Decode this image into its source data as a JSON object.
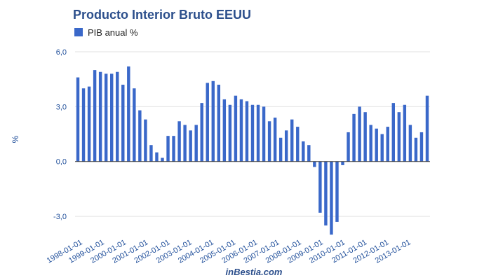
{
  "chart_data": {
    "type": "bar",
    "title": "Producto Interior Bruto EEUU",
    "ylabel": "%",
    "xlabel": "",
    "source": "inBestia.com",
    "ylim": [
      -3.8,
      6.0
    ],
    "yticks": [
      "6,0",
      "3,0",
      "0,0",
      "-3,0"
    ],
    "ytick_values": [
      6.0,
      3.0,
      0.0,
      -3.0
    ],
    "xtick_labels": [
      "1998-01-01",
      "1999-01-01",
      "2000-01-01",
      "2001-01-01",
      "2002-01-01",
      "2003-01-01",
      "2004-01-01",
      "2005-01-01",
      "2006-01-01",
      "2007-01-01",
      "2008-01-01",
      "2009-01-01",
      "2010-01-01",
      "2011-01-01",
      "2012-01-01",
      "2013-01-01"
    ],
    "grid": "horizontal",
    "legend_position": "top-left",
    "series": [
      {
        "name": "PIB anual %",
        "color": "#3a68c9",
        "values": [
          4.6,
          4.0,
          4.1,
          5.0,
          4.9,
          4.8,
          4.8,
          4.9,
          4.2,
          5.2,
          4.0,
          2.8,
          2.3,
          0.9,
          0.5,
          0.2,
          1.4,
          1.4,
          2.2,
          2.0,
          1.7,
          2.0,
          3.2,
          4.3,
          4.4,
          4.2,
          3.4,
          3.1,
          3.6,
          3.4,
          3.3,
          3.1,
          3.1,
          3.0,
          2.2,
          2.4,
          1.3,
          1.7,
          2.3,
          1.9,
          1.1,
          0.9,
          -0.3,
          -2.8,
          -3.5,
          -4.0,
          -3.3,
          -0.2,
          1.6,
          2.6,
          3.0,
          2.7,
          2.0,
          1.8,
          1.5,
          1.9,
          3.2,
          2.7,
          3.1,
          2.0,
          1.3,
          1.6,
          3.6
        ]
      }
    ]
  }
}
